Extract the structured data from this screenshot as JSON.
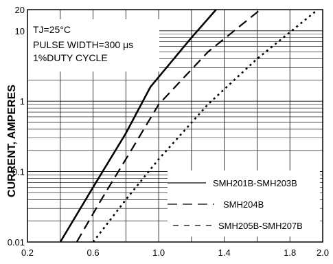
{
  "chart_data": {
    "type": "line",
    "title": "",
    "xlabel": "",
    "ylabel": "CURRENT, AMPERES",
    "x_scale": "linear",
    "y_scale": "log",
    "xlim": [
      0.2,
      2.0
    ],
    "ylim": [
      0.01,
      20
    ],
    "x_ticks": [
      "0.2",
      "0.6",
      "1.0",
      "1.4",
      "1.8",
      "2.0"
    ],
    "x_tick_values": [
      0.2,
      0.6,
      1.0,
      1.4,
      1.8,
      2.0
    ],
    "y_ticks": [
      "0.01",
      "0.1",
      "1",
      "10",
      "20"
    ],
    "y_tick_values": [
      0.01,
      0.1,
      1,
      10,
      20
    ],
    "grid": true,
    "annotations": {
      "line1": "TJ=25°C",
      "line2": "PULSE WIDTH=300 μs",
      "line3": "1%DUTY CYCLE"
    },
    "series": [
      {
        "name": "SMH201B-SMH203B",
        "style": "solid",
        "color": "#000000",
        "x": [
          0.4,
          0.6,
          0.8,
          0.95,
          1.2,
          1.35
        ],
        "y": [
          0.01,
          0.06,
          0.35,
          1.6,
          8,
          20
        ]
      },
      {
        "name": "SMH204B",
        "style": "dashed",
        "color": "#000000",
        "x": [
          0.5,
          0.65,
          0.8,
          1.0,
          1.3,
          1.62
        ],
        "y": [
          0.01,
          0.04,
          0.15,
          0.9,
          5,
          20
        ]
      },
      {
        "name": "SMH205B-SMH207B",
        "style": "dotted",
        "color": "#000000",
        "x": [
          0.6,
          0.8,
          1.0,
          1.3,
          1.6,
          1.97
        ],
        "y": [
          0.01,
          0.04,
          0.15,
          0.9,
          4,
          20
        ]
      }
    ]
  }
}
